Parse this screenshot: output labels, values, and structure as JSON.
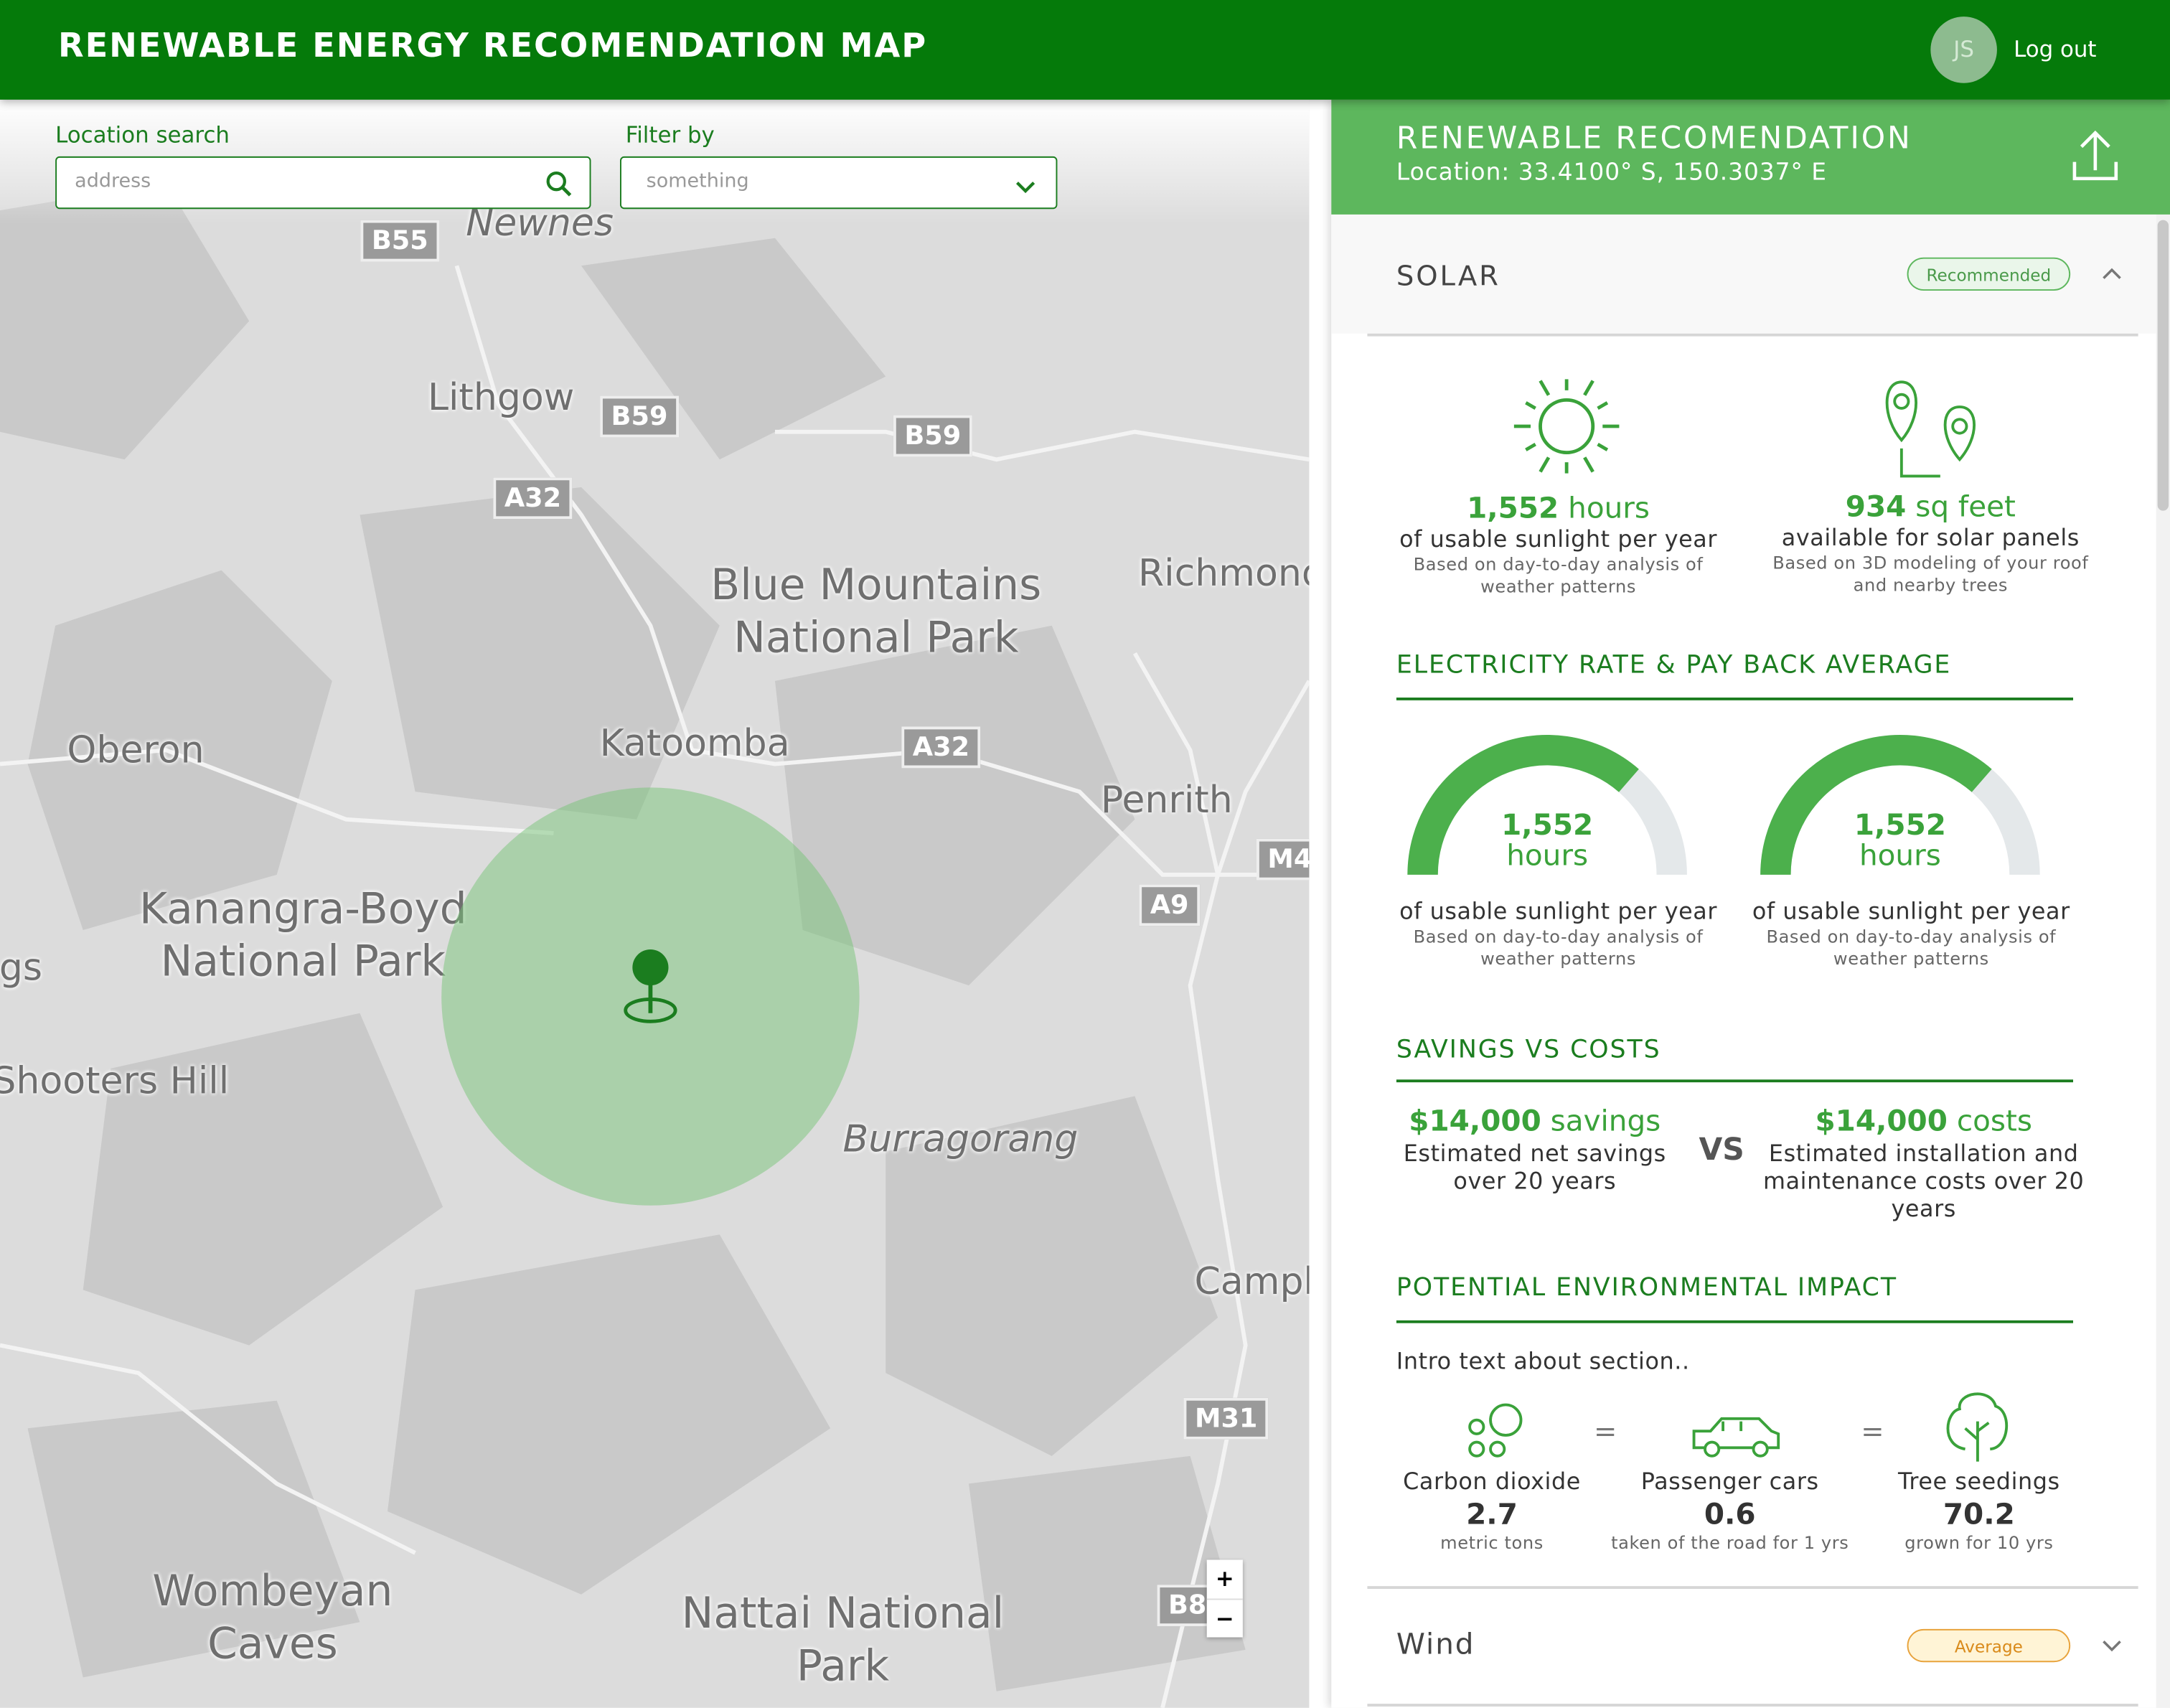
{
  "header": {
    "title": "RENEWABLE ENERGY RECOMENDATION MAP",
    "avatar": "JS",
    "logout": "Log out"
  },
  "search": {
    "label": "Location search",
    "placeholder": "address"
  },
  "filter": {
    "label": "Filter by",
    "placeholder": "something"
  },
  "map": {
    "places": [
      "Newnes",
      "Lithgow",
      "Blue Mountains National Park",
      "Richmond",
      "Oberon",
      "Katoomba",
      "Penrith",
      "Kanangra-Boyd National Park",
      "Springs",
      "Shooters Hill",
      "Burragorang",
      "Campbelltown",
      "Wombeyan Caves",
      "Nattai National Park"
    ],
    "roads": [
      "B55",
      "B59",
      "B59",
      "A32",
      "A32",
      "M4",
      "A9",
      "M31",
      "B8"
    ],
    "zoom_in": "+",
    "zoom_out": "−"
  },
  "panel": {
    "title": "RENEWABLE RECOMENDATION",
    "location": "Location: 33.4100° S, 150.3037° E",
    "solar": {
      "title": "SOLAR",
      "badge": "Recommended",
      "stats": [
        {
          "value": "1,552",
          "unit": "hours",
          "text": "of usable sunlight per year",
          "note": "Based on day-to-day analysis of weather patterns"
        },
        {
          "value": "934",
          "unit": "sq feet",
          "text": "available for solar panels",
          "note": "Based on 3D modeling of your roof and nearby trees"
        }
      ],
      "rate": {
        "title": "ELECTRICITY RATE & PAY BACK AVERAGE",
        "gauges": [
          {
            "value": "1,552",
            "unit": "hours",
            "text": "of usable sunlight per year",
            "note": "Based on day-to-day analysis of weather patterns"
          },
          {
            "value": "1,552",
            "unit": "hours",
            "text": "of usable sunlight per year",
            "note": "Based on day-to-day analysis of weather patterns"
          }
        ]
      },
      "savings": {
        "title": "SAVINGS VS COSTS",
        "vs": "VS",
        "savings": {
          "amount": "$14,000",
          "unit": "savings",
          "text": "Estimated net savings over 20 years"
        },
        "costs": {
          "amount": "$14,000",
          "unit": "costs",
          "text": "Estimated installation and maintenance costs over 20 years"
        }
      },
      "impact": {
        "title": "POTENTIAL ENVIRONMENTAL IMPACT",
        "intro": "Intro text about section..",
        "equals": "=",
        "items": [
          {
            "label": "Carbon dioxide",
            "value": "2.7",
            "note": "metric tons"
          },
          {
            "label": "Passenger cars",
            "value": "0.6",
            "note": "taken of the road for 1 yrs"
          },
          {
            "label": "Tree seedings",
            "value": "70.2",
            "note": "grown for 10 yrs"
          }
        ]
      }
    },
    "wind": {
      "title": "Wind",
      "badge": "Average"
    }
  }
}
